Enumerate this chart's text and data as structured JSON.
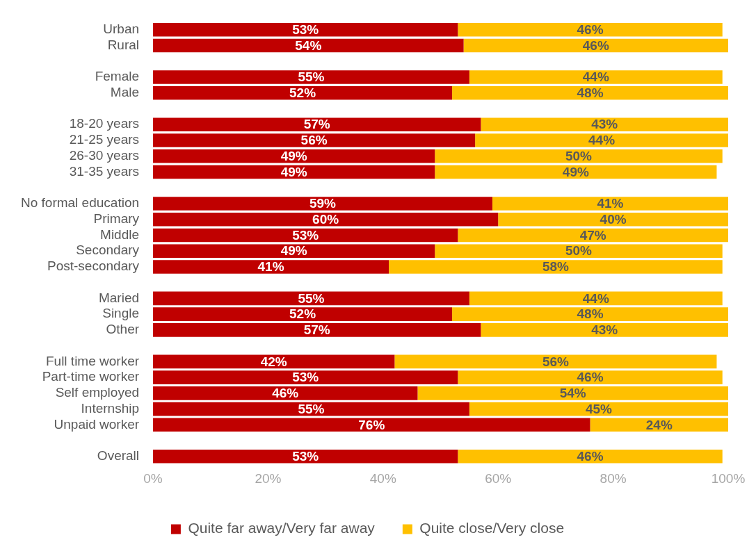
{
  "chart_data": {
    "type": "bar",
    "orientation": "horizontal",
    "stacked": true,
    "categories": [
      "Urban",
      "Rural",
      null,
      "Female",
      "Male",
      null,
      "18-20 years",
      "21-25 years",
      "26-30 years",
      "31-35 years",
      null,
      "No formal education",
      "Primary",
      "Middle",
      "Secondary",
      "Post-secondary",
      null,
      "Maried",
      "Single",
      "Other",
      null,
      "Full time worker",
      "Part-time worker",
      "Self employed",
      "Internship",
      "Unpaid worker",
      null,
      "Overall"
    ],
    "series": [
      {
        "name": "Quite far away/Very far away",
        "color": "#c00000",
        "values": [
          53,
          54,
          null,
          55,
          52,
          null,
          57,
          56,
          49,
          49,
          null,
          59,
          60,
          53,
          49,
          41,
          null,
          55,
          52,
          57,
          null,
          42,
          53,
          46,
          55,
          76,
          null,
          53
        ],
        "value_labels": [
          "53%",
          "54%",
          null,
          "55%",
          "52%",
          null,
          "57%",
          "56%",
          "49%",
          "49%",
          null,
          "59%",
          "60%",
          "53%",
          "49%",
          "41%",
          null,
          "55%",
          "52%",
          "57%",
          null,
          "42%",
          "53%",
          "46%",
          "55%",
          "76%",
          null,
          "53%"
        ]
      },
      {
        "name": "Quite close/Very close",
        "color": "#ffc000",
        "values": [
          46,
          46,
          null,
          44,
          48,
          null,
          43,
          44,
          50,
          49,
          null,
          41,
          40,
          47,
          50,
          58,
          null,
          44,
          48,
          43,
          null,
          56,
          46,
          54,
          45,
          24,
          null,
          46
        ],
        "value_labels": [
          "46%",
          "46%",
          null,
          "44%",
          "48%",
          null,
          "43%",
          "44%",
          "50%",
          "49%",
          null,
          "41%",
          "40%",
          "47%",
          "50%",
          "58%",
          null,
          "44%",
          "48%",
          "43%",
          null,
          "56%",
          "46%",
          "54%",
          "45%",
          "24%",
          null,
          "46%"
        ]
      }
    ],
    "xlim": [
      0,
      100
    ],
    "xticks": [
      {
        "value": 0,
        "label": "0%"
      },
      {
        "value": 20,
        "label": "20%"
      },
      {
        "value": 40,
        "label": "40%"
      },
      {
        "value": 60,
        "label": "60%"
      },
      {
        "value": 80,
        "label": "80%"
      },
      {
        "value": 100,
        "label": "100%"
      }
    ],
    "grid": false,
    "legend": "bottom"
  }
}
